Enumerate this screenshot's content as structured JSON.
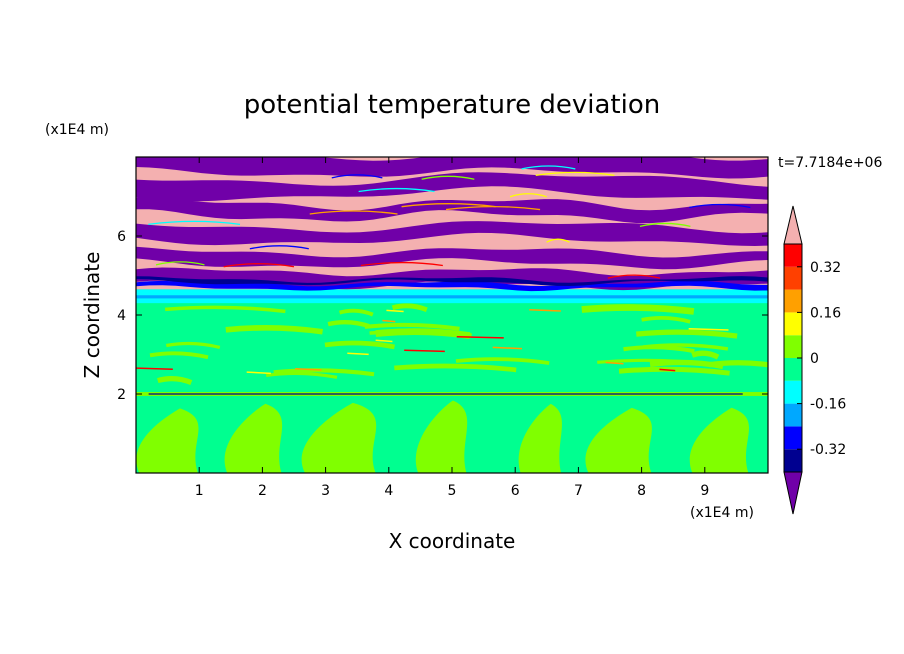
{
  "chart_data": {
    "type": "heatmap",
    "title": "potential temperature deviation",
    "xlabel": "X coordinate",
    "ylabel": "Z coordinate",
    "x_unit": "(x1E4 m)",
    "y_unit": "(x1E4 m)",
    "time_label": "t=7.7184e+06",
    "xlim": [
      0,
      10
    ],
    "ylim": [
      0,
      8
    ],
    "x_ticks": [
      1,
      2,
      3,
      4,
      5,
      6,
      7,
      8,
      9
    ],
    "y_ticks": [
      2,
      4,
      6
    ],
    "colorbar": {
      "labels": [
        "0.32",
        "0.16",
        "0",
        "-0.16",
        "-0.32"
      ],
      "label_values": [
        0.32,
        0.16,
        0,
        -0.16,
        -0.32
      ],
      "levels": [
        -0.4,
        -0.32,
        -0.24,
        -0.16,
        -0.08,
        0,
        0.08,
        0.16,
        0.24,
        0.32,
        0.4
      ],
      "colors": [
        "#4b00a0",
        "#000090",
        "#0000ff",
        "#00a8ff",
        "#00ffff",
        "#00ff90",
        "#80ff00",
        "#ffff00",
        "#ffa000",
        "#ff4000",
        "#ff0000",
        "#ffb0b0"
      ],
      "under_color": "#7000a8",
      "over_color": "#f4b0b0"
    }
  }
}
